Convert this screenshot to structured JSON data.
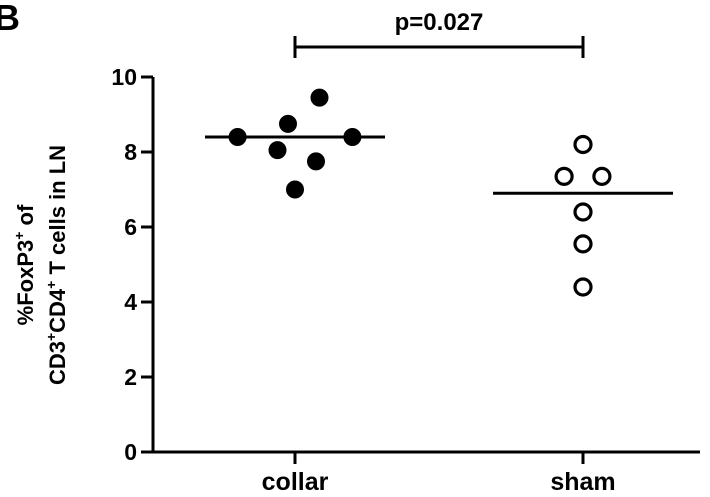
{
  "panel_label": "B",
  "chart_data": {
    "type": "scatter",
    "ylabel_line1": "%FoxP3",
    "ylabel_line1_sup": "+",
    "ylabel_line1_end": " of",
    "ylabel_line2_a": "CD3",
    "ylabel_line2_sup1": "+",
    "ylabel_line2_b": "CD4",
    "ylabel_line2_sup2": "+",
    "ylabel_line2_c": " T cells in LN",
    "ylim": [
      0,
      10
    ],
    "yticks": [
      "0",
      "2",
      "4",
      "6",
      "8",
      "10"
    ],
    "categories": [
      "collar",
      "sham"
    ],
    "groups": [
      {
        "category": "collar",
        "marker": "filled-circle",
        "points": [
          9.45,
          8.75,
          8.4,
          8.4,
          8.05,
          7.75,
          7.0
        ],
        "offsets": [
          0.35,
          -0.1,
          -0.82,
          0.82,
          -0.25,
          0.3,
          0.0
        ],
        "mean": 8.4
      },
      {
        "category": "sham",
        "marker": "open-circle",
        "points": [
          8.2,
          7.35,
          7.35,
          6.4,
          5.55,
          4.4
        ],
        "offsets": [
          0.0,
          -0.27,
          0.27,
          0.0,
          0.0,
          0.0
        ],
        "mean": 6.9
      }
    ],
    "annotation": {
      "text": "p=0.027",
      "between": [
        "collar",
        "sham"
      ]
    },
    "colors": {
      "marker": "#000000",
      "axis": "#000000"
    }
  }
}
